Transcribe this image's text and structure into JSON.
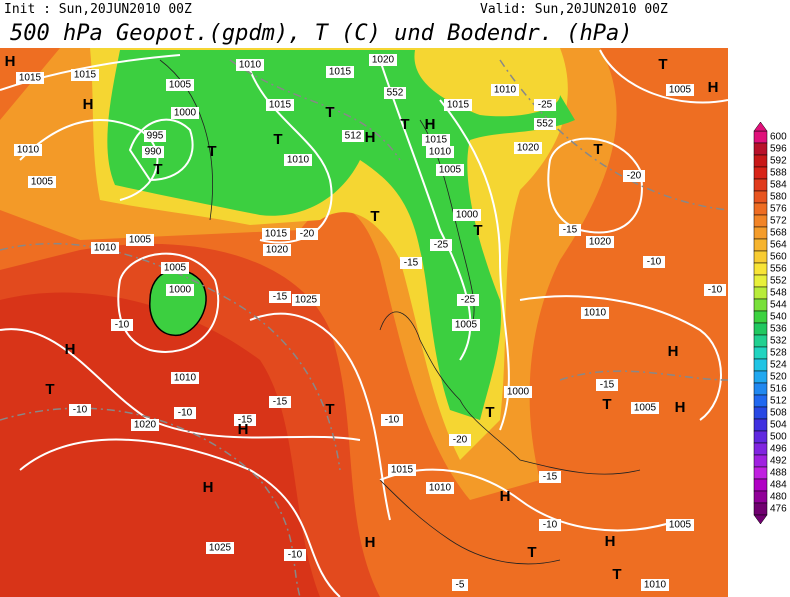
{
  "header": {
    "init": "Init : Sun,20JUN2010 00Z",
    "valid": "Valid: Sun,20JUN2010 00Z",
    "title": "500 hPa Geopot.(gpdm), T (C) und Bodendr. (hPa)"
  },
  "colorbar": {
    "labels": [
      600,
      596,
      592,
      588,
      584,
      580,
      576,
      572,
      568,
      564,
      560,
      556,
      552,
      548,
      544,
      540,
      536,
      532,
      528,
      524,
      520,
      516,
      512,
      508,
      504,
      500,
      496,
      492,
      488,
      484,
      480,
      476
    ],
    "colors": [
      "#e0107a",
      "#b8102a",
      "#c81818",
      "#d82418",
      "#e03a1c",
      "#e85420",
      "#ee6c22",
      "#f28426",
      "#f49c2a",
      "#f6b42e",
      "#f8cc32",
      "#f8e436",
      "#e8f03a",
      "#b8ec3a",
      "#78e03a",
      "#3cd240",
      "#20c860",
      "#20d090",
      "#20d4c0",
      "#20c4e4",
      "#20a8f0",
      "#2088f0",
      "#2068f0",
      "#2848e4",
      "#4030e0",
      "#6028e0",
      "#8024e0",
      "#a020e0",
      "#c020e0",
      "#b000c4",
      "#900098",
      "#700070"
    ]
  },
  "map_labels": [
    "H",
    "1015",
    "1015",
    "H",
    "1010",
    "1005",
    "1010",
    "1005",
    "1005",
    "1000",
    "995",
    "990",
    "T",
    "1000",
    "1005",
    "1010",
    "1015",
    "1020",
    "552",
    "1015",
    "T",
    "1010",
    "T",
    "T",
    "H",
    "512",
    "T",
    "H",
    "1015",
    "1010",
    "1005",
    "1015",
    "1010",
    "-25",
    "552",
    "1020",
    "T",
    "-20",
    "1005",
    "H",
    "T",
    "T",
    "1015",
    "1020",
    "-20",
    "1025",
    "-15",
    "1000",
    "T",
    "-25",
    "-25",
    "1005",
    "-15",
    "-15",
    "1020",
    "-10",
    "1010",
    "-10",
    "H",
    "H",
    "T",
    "-10",
    "1020",
    "-10",
    "-15",
    "H",
    "-15",
    "1010",
    "-10",
    "T",
    "-10",
    "1000",
    "T",
    "-20",
    "-15",
    "T",
    "1005",
    "H",
    "1015",
    "1010",
    "H",
    "H",
    "-15",
    "-10",
    "1025",
    "-10",
    "H",
    "T",
    "H",
    "-5",
    "1010",
    "T",
    "1005"
  ]
}
